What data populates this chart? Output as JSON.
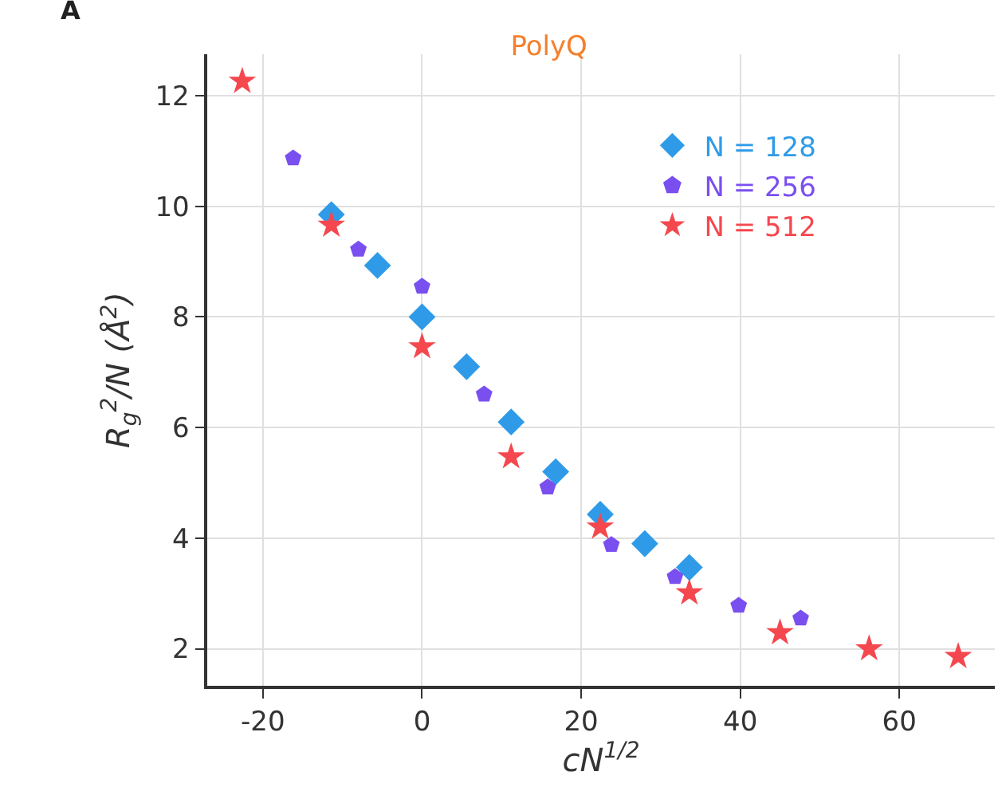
{
  "chart_data": {
    "type": "scatter",
    "title": "PolyQ",
    "xlabel": "cN$^{1/2}$",
    "ylabel": "R$_{g}$$^{2}$/N (Å$^{2}$)",
    "annotations": [
      "A"
    ],
    "xlim": [
      -27,
      72
    ],
    "xticks": [
      -20,
      0,
      20,
      40,
      60
    ],
    "ylim": [
      1.33,
      12.75
    ],
    "yticks": [
      2,
      4,
      6,
      8,
      10,
      12
    ],
    "grid": true,
    "legend": "top right",
    "series": [
      {
        "name": "N = 128",
        "color": "#2f9be8",
        "marker": "diamond",
        "x": [
          -11.4,
          -5.6,
          0,
          5.6,
          11.2,
          16.8,
          22.4,
          28,
          33.6
        ],
        "values": [
          9.85,
          8.93,
          8.0,
          7.1,
          6.1,
          5.2,
          4.43,
          3.9,
          3.47
        ]
      },
      {
        "name": "N = 256",
        "color": "#7a4ff0",
        "x": [
          -16.2,
          -8,
          0,
          7.8,
          15.8,
          23.8,
          31.8,
          39.8,
          47.6
        ],
        "values": [
          10.87,
          9.22,
          8.55,
          6.6,
          4.92,
          3.88,
          3.3,
          2.78,
          2.55
        ]
      },
      {
        "name": "N = 512",
        "color": "#f5474e",
        "marker": "star",
        "x": [
          -22.6,
          -11.4,
          0,
          11.2,
          22.4,
          33.6,
          45,
          56.2,
          67.4
        ],
        "values": [
          12.26,
          9.66,
          7.46,
          5.47,
          4.2,
          3.01,
          2.29,
          2.0,
          1.86
        ]
      }
    ]
  }
}
